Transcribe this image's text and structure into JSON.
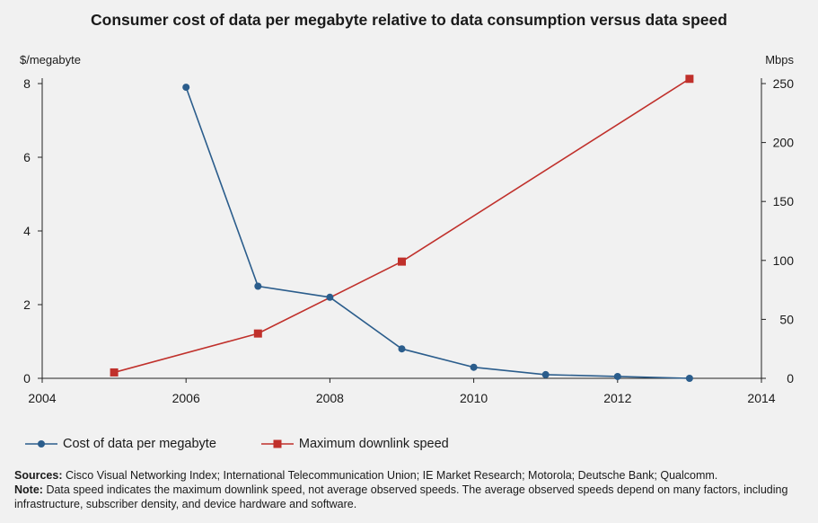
{
  "chart_data": {
    "type": "line",
    "title": "Consumer cost of data per megabyte relative to data consumption versus data speed",
    "left_axis_label": "$/megabyte",
    "right_axis_label": "Mbps",
    "x_ticks": [
      2004,
      2006,
      2008,
      2010,
      2012,
      2014
    ],
    "xlim": [
      2004,
      2014
    ],
    "y_left_ticks": [
      0,
      2,
      4,
      6,
      8
    ],
    "y_left_lim": [
      0,
      8
    ],
    "y_right_ticks": [
      0,
      50,
      100,
      150,
      200,
      250
    ],
    "y_right_lim": [
      0,
      250
    ],
    "grid": false,
    "legend_placement": "bottom-left",
    "series": [
      {
        "name": "Cost of data per megabyte",
        "axis": "left",
        "color": "#2b5d8c",
        "marker": "circle",
        "x": [
          2006,
          2007,
          2008,
          2009,
          2010,
          2011,
          2012,
          2013
        ],
        "values": [
          7.9,
          2.5,
          2.2,
          0.8,
          0.3,
          0.1,
          0.05,
          0.0
        ]
      },
      {
        "name": "Maximum downlink speed",
        "axis": "right",
        "color": "#c0302b",
        "marker": "square",
        "x": [
          2005,
          2007,
          2009,
          2013
        ],
        "values": [
          5,
          38,
          99,
          254
        ]
      }
    ]
  },
  "sources_label": "Sources:",
  "sources_text": "Cisco Visual Networking Index; International Telecommunication Union; IE Market Research; Motorola; Deutsche Bank; Qualcomm.",
  "note_label": "Note:",
  "note_text": "Data speed indicates the maximum downlink speed, not average observed speeds. The average observed speeds depend on many factors, including infrastructure, subscriber density, and device hardware and software."
}
